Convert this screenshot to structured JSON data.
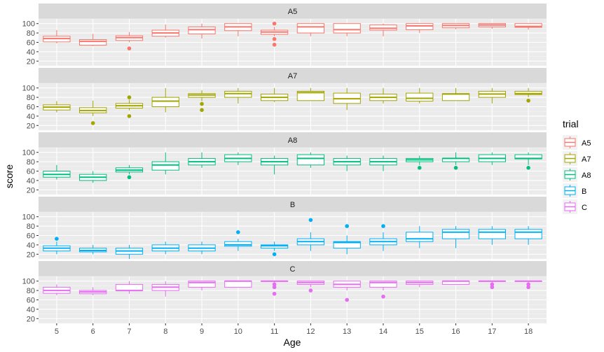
{
  "chart_data": {
    "type": "boxplot",
    "xlabel": "Age",
    "ylabel": "score",
    "x": [
      5,
      6,
      7,
      8,
      9,
      10,
      11,
      12,
      13,
      14,
      15,
      16,
      17,
      18
    ],
    "yticks": [
      20,
      40,
      60,
      80,
      100
    ],
    "ylim": [
      10,
      110
    ],
    "grid": true,
    "legend": {
      "title": "trial",
      "position": "right"
    },
    "panels": [
      {
        "name": "A5",
        "color": "#F8766D",
        "boxes": [
          {
            "x": 5,
            "min": 58,
            "q1": 61,
            "median": 68,
            "q3": 73,
            "max": 86,
            "outliers": []
          },
          {
            "x": 6,
            "min": 52,
            "q1": 54,
            "median": 62,
            "q3": 66,
            "max": 78,
            "outliers": []
          },
          {
            "x": 7,
            "min": 60,
            "q1": 64,
            "median": 70,
            "q3": 74,
            "max": 82,
            "outliers": [
              47
            ]
          },
          {
            "x": 8,
            "min": 70,
            "q1": 73,
            "median": 80,
            "q3": 86,
            "max": 98,
            "outliers": []
          },
          {
            "x": 9,
            "min": 68,
            "q1": 78,
            "median": 87,
            "q3": 93,
            "max": 100,
            "outliers": []
          },
          {
            "x": 10,
            "min": 73,
            "q1": 85,
            "median": 93,
            "q3": 100,
            "max": 100,
            "outliers": []
          },
          {
            "x": 11,
            "min": 73,
            "q1": 77,
            "median": 82,
            "q3": 86,
            "max": 93,
            "outliers": [
              100,
              67,
              55
            ]
          },
          {
            "x": 12,
            "min": 73,
            "q1": 80,
            "median": 93,
            "q3": 100,
            "max": 100,
            "outliers": []
          },
          {
            "x": 13,
            "min": 73,
            "q1": 80,
            "median": 87,
            "q3": 100,
            "max": 100,
            "outliers": []
          },
          {
            "x": 14,
            "min": 73,
            "q1": 86,
            "median": 90,
            "q3": 97,
            "max": 100,
            "outliers": []
          },
          {
            "x": 15,
            "min": 80,
            "q1": 87,
            "median": 95,
            "q3": 100,
            "max": 100,
            "outliers": []
          },
          {
            "x": 16,
            "min": 88,
            "q1": 91,
            "median": 96,
            "q3": 100,
            "max": 100,
            "outliers": []
          },
          {
            "x": 17,
            "min": 89,
            "q1": 93,
            "median": 97,
            "q3": 100,
            "max": 100,
            "outliers": []
          },
          {
            "x": 18,
            "min": 87,
            "q1": 92,
            "median": 94,
            "q3": 100,
            "max": 100,
            "outliers": []
          }
        ]
      },
      {
        "name": "A7",
        "color": "#A3A500",
        "boxes": [
          {
            "x": 5,
            "min": 48,
            "q1": 53,
            "median": 59,
            "q3": 64,
            "max": 72,
            "outliers": []
          },
          {
            "x": 6,
            "min": 40,
            "q1": 47,
            "median": 52,
            "q3": 58,
            "max": 73,
            "outliers": [
              25
            ]
          },
          {
            "x": 7,
            "min": 52,
            "q1": 57,
            "median": 62,
            "q3": 67,
            "max": 75,
            "outliers": [
              80,
              40
            ]
          },
          {
            "x": 8,
            "min": 48,
            "q1": 60,
            "median": 72,
            "q3": 80,
            "max": 100,
            "outliers": []
          },
          {
            "x": 9,
            "min": 72,
            "q1": 80,
            "median": 85,
            "q3": 88,
            "max": 95,
            "outliers": [
              66,
              53
            ]
          },
          {
            "x": 10,
            "min": 67,
            "q1": 80,
            "median": 88,
            "q3": 93,
            "max": 100,
            "outliers": []
          },
          {
            "x": 11,
            "min": 70,
            "q1": 73,
            "median": 80,
            "q3": 87,
            "max": 100,
            "outliers": []
          },
          {
            "x": 12,
            "min": 73,
            "q1": 73,
            "median": 90,
            "q3": 93,
            "max": 100,
            "outliers": []
          },
          {
            "x": 13,
            "min": 53,
            "q1": 67,
            "median": 77,
            "q3": 89,
            "max": 100,
            "outliers": []
          },
          {
            "x": 14,
            "min": 67,
            "q1": 73,
            "median": 80,
            "q3": 87,
            "max": 100,
            "outliers": []
          },
          {
            "x": 15,
            "min": 67,
            "q1": 72,
            "median": 78,
            "q3": 89,
            "max": 100,
            "outliers": []
          },
          {
            "x": 16,
            "min": 73,
            "q1": 73,
            "median": 87,
            "q3": 88,
            "max": 100,
            "outliers": []
          },
          {
            "x": 17,
            "min": 67,
            "q1": 80,
            "median": 87,
            "q3": 93,
            "max": 100,
            "outliers": []
          },
          {
            "x": 18,
            "min": 80,
            "q1": 86,
            "median": 88,
            "q3": 93,
            "max": 100,
            "outliers": [
              73
            ]
          }
        ]
      },
      {
        "name": "A8",
        "color": "#00BF7D",
        "boxes": [
          {
            "x": 5,
            "min": 42,
            "q1": 47,
            "median": 53,
            "q3": 60,
            "max": 73,
            "outliers": []
          },
          {
            "x": 6,
            "min": 35,
            "q1": 40,
            "median": 47,
            "q3": 53,
            "max": 60,
            "outliers": []
          },
          {
            "x": 7,
            "min": 53,
            "q1": 58,
            "median": 62,
            "q3": 67,
            "max": 73,
            "outliers": [
              47
            ]
          },
          {
            "x": 8,
            "min": 53,
            "q1": 62,
            "median": 73,
            "q3": 80,
            "max": 100,
            "outliers": []
          },
          {
            "x": 9,
            "min": 67,
            "q1": 73,
            "median": 80,
            "q3": 87,
            "max": 100,
            "outliers": []
          },
          {
            "x": 10,
            "min": 73,
            "q1": 80,
            "median": 87,
            "q3": 95,
            "max": 100,
            "outliers": []
          },
          {
            "x": 11,
            "min": 53,
            "q1": 73,
            "median": 80,
            "q3": 87,
            "max": 93,
            "outliers": []
          },
          {
            "x": 12,
            "min": 67,
            "q1": 73,
            "median": 87,
            "q3": 95,
            "max": 100,
            "outliers": []
          },
          {
            "x": 13,
            "min": 60,
            "q1": 73,
            "median": 80,
            "q3": 87,
            "max": 93,
            "outliers": []
          },
          {
            "x": 14,
            "min": 60,
            "q1": 73,
            "median": 80,
            "q3": 87,
            "max": 93,
            "outliers": []
          },
          {
            "x": 15,
            "min": 73,
            "q1": 80,
            "median": 84,
            "q3": 87,
            "max": 93,
            "outliers": [
              67
            ]
          },
          {
            "x": 16,
            "min": 73,
            "q1": 80,
            "median": 87,
            "q3": 87,
            "max": 100,
            "outliers": [
              67
            ]
          },
          {
            "x": 17,
            "min": 73,
            "q1": 80,
            "median": 87,
            "q3": 95,
            "max": 100,
            "outliers": []
          },
          {
            "x": 18,
            "min": 73,
            "q1": 86,
            "median": 87,
            "q3": 95,
            "max": 100,
            "outliers": [
              67
            ]
          }
        ]
      },
      {
        "name": "B",
        "color": "#00B0F6",
        "boxes": [
          {
            "x": 5,
            "min": 20,
            "q1": 27,
            "median": 33,
            "q3": 38,
            "max": 47,
            "outliers": [
              53
            ]
          },
          {
            "x": 6,
            "min": 20,
            "q1": 25,
            "median": 28,
            "q3": 33,
            "max": 40,
            "outliers": []
          },
          {
            "x": 7,
            "min": 10,
            "q1": 20,
            "median": 27,
            "q3": 33,
            "max": 40,
            "outliers": []
          },
          {
            "x": 8,
            "min": 20,
            "q1": 27,
            "median": 33,
            "q3": 40,
            "max": 47,
            "outliers": []
          },
          {
            "x": 9,
            "min": 20,
            "q1": 27,
            "median": 33,
            "q3": 40,
            "max": 47,
            "outliers": []
          },
          {
            "x": 10,
            "min": 27,
            "q1": 37,
            "median": 40,
            "q3": 47,
            "max": 53,
            "outliers": [
              67
            ]
          },
          {
            "x": 11,
            "min": 27,
            "q1": 33,
            "median": 38,
            "q3": 40,
            "max": 47,
            "outliers": [
              20
            ]
          },
          {
            "x": 12,
            "min": 27,
            "q1": 40,
            "median": 47,
            "q3": 53,
            "max": 67,
            "outliers": [
              93
            ]
          },
          {
            "x": 13,
            "min": 20,
            "q1": 33,
            "median": 45,
            "q3": 47,
            "max": 60,
            "outliers": [
              80
            ]
          },
          {
            "x": 14,
            "min": 27,
            "q1": 40,
            "median": 47,
            "q3": 53,
            "max": 67,
            "outliers": [
              80
            ]
          },
          {
            "x": 15,
            "min": 33,
            "q1": 47,
            "median": 53,
            "q3": 67,
            "max": 80,
            "outliers": []
          },
          {
            "x": 16,
            "min": 33,
            "q1": 53,
            "median": 67,
            "q3": 73,
            "max": 80,
            "outliers": []
          },
          {
            "x": 17,
            "min": 40,
            "q1": 53,
            "median": 67,
            "q3": 73,
            "max": 80,
            "outliers": []
          },
          {
            "x": 18,
            "min": 40,
            "q1": 53,
            "median": 67,
            "q3": 73,
            "max": 80,
            "outliers": []
          }
        ]
      },
      {
        "name": "C",
        "color": "#E76BF3",
        "boxes": [
          {
            "x": 5,
            "min": 70,
            "q1": 74,
            "median": 80,
            "q3": 87,
            "max": 93,
            "outliers": []
          },
          {
            "x": 6,
            "min": 70,
            "q1": 73,
            "median": 77,
            "q3": 80,
            "max": 87,
            "outliers": []
          },
          {
            "x": 7,
            "min": 73,
            "q1": 80,
            "median": 80,
            "q3": 93,
            "max": 100,
            "outliers": []
          },
          {
            "x": 8,
            "min": 67,
            "q1": 80,
            "median": 87,
            "q3": 93,
            "max": 100,
            "outliers": []
          },
          {
            "x": 9,
            "min": 80,
            "q1": 87,
            "median": 97,
            "q3": 100,
            "max": 100,
            "outliers": []
          },
          {
            "x": 10,
            "min": 87,
            "q1": 87,
            "median": 100,
            "q3": 100,
            "max": 100,
            "outliers": []
          },
          {
            "x": 11,
            "min": 93,
            "q1": 100,
            "median": 100,
            "q3": 100,
            "max": 100,
            "outliers": [
              93,
              87,
              73
            ]
          },
          {
            "x": 12,
            "min": 87,
            "q1": 93,
            "median": 97,
            "q3": 100,
            "max": 100,
            "outliers": [
              80
            ]
          },
          {
            "x": 13,
            "min": 80,
            "q1": 87,
            "median": 93,
            "q3": 100,
            "max": 100,
            "outliers": [
              60
            ]
          },
          {
            "x": 14,
            "min": 80,
            "q1": 87,
            "median": 97,
            "q3": 100,
            "max": 100,
            "outliers": [
              67
            ]
          },
          {
            "x": 15,
            "min": 87,
            "q1": 93,
            "median": 97,
            "q3": 100,
            "max": 100,
            "outliers": []
          },
          {
            "x": 16,
            "min": 93,
            "q1": 93,
            "median": 100,
            "q3": 100,
            "max": 100,
            "outliers": []
          },
          {
            "x": 17,
            "min": 93,
            "q1": 100,
            "median": 100,
            "q3": 100,
            "max": 100,
            "outliers": [
              93,
              87
            ]
          },
          {
            "x": 18,
            "min": 93,
            "q1": 100,
            "median": 100,
            "q3": 100,
            "max": 100,
            "outliers": [
              93,
              87
            ]
          }
        ]
      }
    ]
  }
}
